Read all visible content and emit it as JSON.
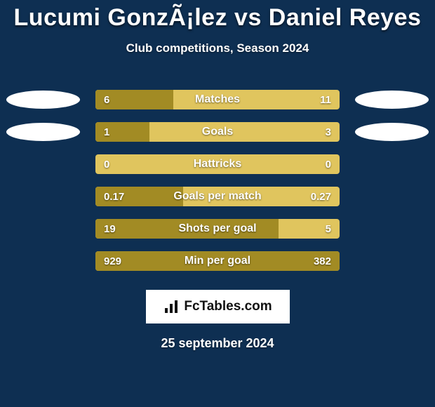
{
  "colors": {
    "page_bg": "#0e2f52",
    "title": "#ffffff",
    "subtitle": "#ffffff",
    "ellipse": "#ffffff",
    "bar_bg": "#e0c55e",
    "bar_fill": "#a28b24",
    "bar_label": "#ffffff",
    "bar_value": "#ffffff",
    "logo_bg": "#ffffff",
    "date": "#ffffff"
  },
  "title": "Lucumi GonzÃ¡lez vs Daniel Reyes",
  "subtitle": "Club competitions, Season 2024",
  "date": "25 september 2024",
  "logo_text": "FcTables.com",
  "stats": [
    {
      "label": "Matches",
      "left_text": "6",
      "right_text": "11",
      "fill_pct": 32,
      "show_left_ellipse": true,
      "show_right_ellipse": true
    },
    {
      "label": "Goals",
      "left_text": "1",
      "right_text": "3",
      "fill_pct": 22,
      "show_left_ellipse": true,
      "show_right_ellipse": true
    },
    {
      "label": "Hattricks",
      "left_text": "0",
      "right_text": "0",
      "fill_pct": 0,
      "show_left_ellipse": false,
      "show_right_ellipse": false
    },
    {
      "label": "Goals per match",
      "left_text": "0.17",
      "right_text": "0.27",
      "fill_pct": 36,
      "show_left_ellipse": false,
      "show_right_ellipse": false
    },
    {
      "label": "Shots per goal",
      "left_text": "19",
      "right_text": "5",
      "fill_pct": 75,
      "show_left_ellipse": false,
      "show_right_ellipse": false
    },
    {
      "label": "Min per goal",
      "left_text": "929",
      "right_text": "382",
      "fill_pct": 100,
      "show_left_ellipse": false,
      "show_right_ellipse": false
    }
  ]
}
